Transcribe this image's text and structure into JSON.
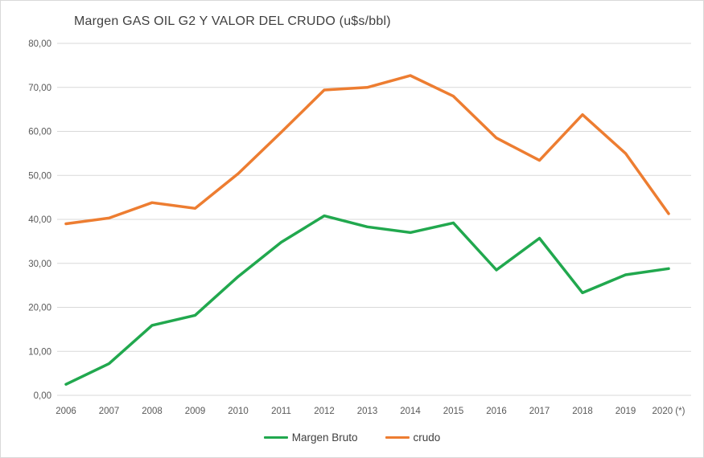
{
  "chart_data": {
    "type": "line",
    "title": "Margen GAS OIL G2 Y VALOR DEL CRUDO (u$s/bbl)",
    "xlabel": "",
    "ylabel": "",
    "units": "u$s/bbl",
    "categories": [
      "2006",
      "2007",
      "2008",
      "2009",
      "2010",
      "2011",
      "2012",
      "2013",
      "2014",
      "2015",
      "2016",
      "2017",
      "2018",
      "2019",
      "2020 (*)"
    ],
    "series": [
      {
        "name": "Margen Bruto",
        "color": "#21a84e",
        "values": [
          2.5,
          7.2,
          15.9,
          18.2,
          27.0,
          34.8,
          40.8,
          38.3,
          37.0,
          39.2,
          28.5,
          35.7,
          23.3,
          27.4,
          28.8
        ]
      },
      {
        "name": "crudo",
        "color": "#ed7d31",
        "values": [
          39.0,
          40.3,
          43.8,
          42.5,
          50.4,
          59.8,
          69.4,
          70.0,
          72.7,
          68.0,
          58.5,
          53.4,
          63.8,
          55.0,
          41.3
        ]
      }
    ],
    "ylim": [
      0,
      80
    ],
    "ytick_step": 10,
    "ytick_labels": [
      "0,00",
      "10,00",
      "20,00",
      "30,00",
      "40,00",
      "50,00",
      "60,00",
      "70,00",
      "80,00"
    ],
    "grid": "horizontal",
    "legend_position": "bottom"
  },
  "colors": {
    "background": "#ffffff",
    "border": "#d9d9d9",
    "gridline": "#d9d9d9",
    "axis_text": "#595959",
    "title_text": "#404040",
    "legend_text": "#404040"
  }
}
